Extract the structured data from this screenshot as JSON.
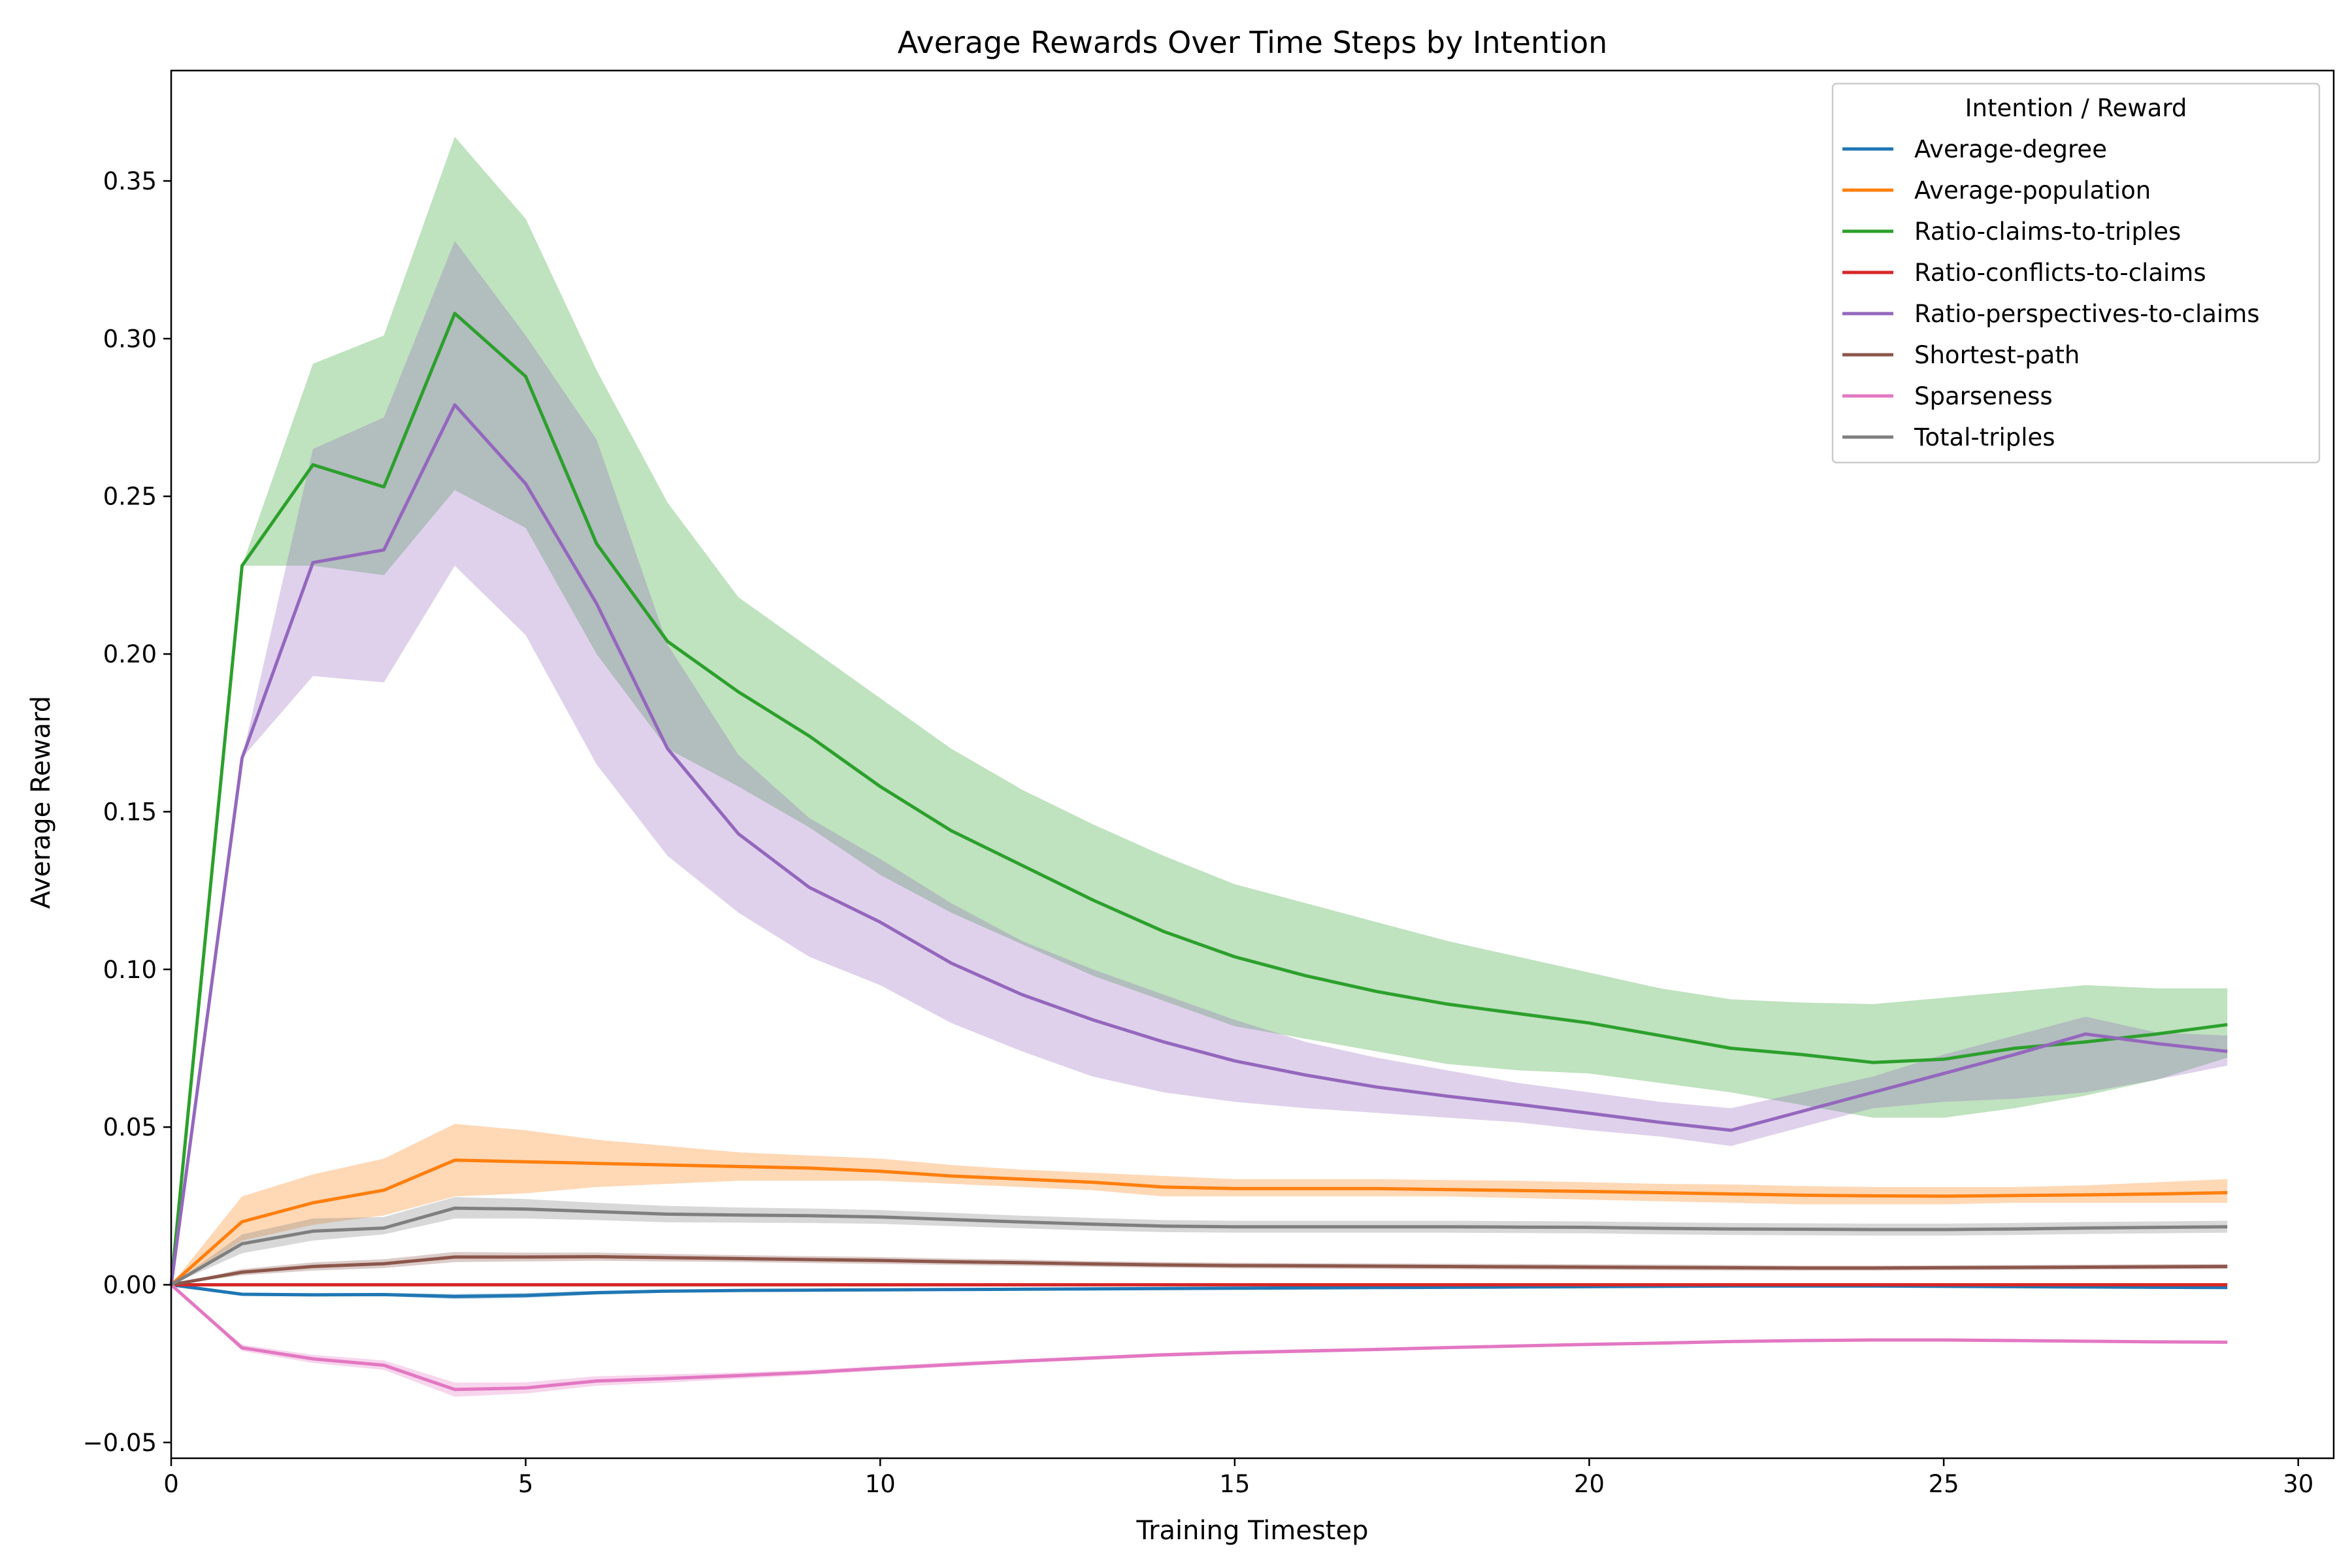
{
  "chart_data": {
    "type": "line",
    "title": "Average Rewards Over Time Steps by Intention",
    "xlabel": "Training Timestep",
    "ylabel": "Average Reward",
    "xlim": [
      0,
      30.5
    ],
    "ylim": [
      -0.055,
      0.385
    ],
    "xticks": [
      0,
      5,
      10,
      15,
      20,
      25,
      30
    ],
    "yticks": [
      -0.05,
      0.0,
      0.05,
      0.1,
      0.15,
      0.2,
      0.25,
      0.3,
      0.35
    ],
    "ytick_labels": [
      "−0.05",
      "0.00",
      "0.05",
      "0.10",
      "0.15",
      "0.20",
      "0.25",
      "0.30",
      "0.35"
    ],
    "grid": false,
    "legend": {
      "title": "Intention / Reward",
      "placement": "top-right"
    },
    "x": [
      0,
      1,
      2,
      3,
      4,
      5,
      6,
      7,
      8,
      9,
      10,
      11,
      12,
      13,
      14,
      15,
      16,
      17,
      18,
      19,
      20,
      21,
      22,
      23,
      24,
      25,
      26,
      27,
      28,
      29
    ],
    "series": [
      {
        "name": "Average-degree",
        "color": "#1f77b4",
        "values": [
          0,
          -0.003,
          -0.0032,
          -0.0031,
          -0.0037,
          -0.0034,
          -0.0025,
          -0.002,
          -0.0018,
          -0.0017,
          -0.0016,
          -0.0015,
          -0.0014,
          -0.0013,
          -0.0012,
          -0.0011,
          -0.001,
          -0.0009,
          -0.0008,
          -0.0007,
          -0.0006,
          -0.0005,
          -0.0004,
          -0.0004,
          -0.0004,
          -0.0005,
          -0.0006,
          -0.0007,
          -0.0008,
          -0.0009
        ],
        "lower": [
          0,
          -0.0035,
          -0.0037,
          -0.0036,
          -0.0045,
          -0.0042,
          -0.0031,
          -0.0025,
          -0.0022,
          -0.0021,
          -0.002,
          -0.0019,
          -0.0018,
          -0.0017,
          -0.0016,
          -0.0015,
          -0.0014,
          -0.0013,
          -0.0012,
          -0.0011,
          -0.001,
          -0.0009,
          -0.0008,
          -0.0008,
          -0.0008,
          -0.0009,
          -0.001,
          -0.0011,
          -0.0012,
          -0.0013
        ],
        "upper": [
          0,
          -0.0025,
          -0.0027,
          -0.0026,
          -0.0029,
          -0.0026,
          -0.0019,
          -0.0015,
          -0.0014,
          -0.0013,
          -0.0012,
          -0.0011,
          -0.001,
          -0.0009,
          -0.0008,
          -0.0007,
          -0.0006,
          -0.0005,
          -0.0004,
          -0.0003,
          -0.0002,
          -0.0001,
          0,
          0,
          0,
          -0.0001,
          -0.0002,
          -0.0003,
          -0.0004,
          -0.0005
        ]
      },
      {
        "name": "Average-population",
        "color": "#ff7f0e",
        "values": [
          0,
          0.02,
          0.026,
          0.03,
          0.0395,
          0.039,
          0.0385,
          0.038,
          0.0375,
          0.037,
          0.036,
          0.0345,
          0.0335,
          0.0325,
          0.031,
          0.0305,
          0.0305,
          0.0305,
          0.0302,
          0.0299,
          0.0296,
          0.0292,
          0.0288,
          0.0284,
          0.0282,
          0.0281,
          0.0283,
          0.0285,
          0.0288,
          0.0292
        ],
        "lower": [
          0,
          0.014,
          0.019,
          0.022,
          0.028,
          0.029,
          0.031,
          0.032,
          0.033,
          0.033,
          0.033,
          0.032,
          0.031,
          0.03,
          0.028,
          0.028,
          0.028,
          0.028,
          0.028,
          0.0275,
          0.027,
          0.0265,
          0.026,
          0.0255,
          0.0255,
          0.0255,
          0.026,
          0.026,
          0.026,
          0.026
        ],
        "upper": [
          0,
          0.028,
          0.035,
          0.04,
          0.051,
          0.049,
          0.046,
          0.044,
          0.042,
          0.041,
          0.04,
          0.038,
          0.0365,
          0.0355,
          0.0345,
          0.0335,
          0.0335,
          0.0335,
          0.0332,
          0.033,
          0.0325,
          0.032,
          0.0318,
          0.0313,
          0.031,
          0.031,
          0.031,
          0.0315,
          0.0325,
          0.0335
        ]
      },
      {
        "name": "Ratio-claims-to-triples",
        "color": "#2ca02c",
        "values": [
          0,
          0.228,
          0.26,
          0.253,
          0.308,
          0.288,
          0.235,
          0.204,
          0.188,
          0.174,
          0.158,
          0.144,
          0.133,
          0.122,
          0.112,
          0.104,
          0.098,
          0.093,
          0.089,
          0.086,
          0.083,
          0.079,
          0.075,
          0.073,
          0.0705,
          0.0715,
          0.075,
          0.077,
          0.0795,
          0.0825
        ],
        "lower": [
          0,
          0.228,
          0.228,
          0.225,
          0.252,
          0.24,
          0.2,
          0.17,
          0.158,
          0.145,
          0.13,
          0.118,
          0.108,
          0.098,
          0.09,
          0.082,
          0.078,
          0.074,
          0.07,
          0.068,
          0.067,
          0.064,
          0.061,
          0.057,
          0.053,
          0.053,
          0.056,
          0.06,
          0.065,
          0.072
        ],
        "upper": [
          0,
          0.228,
          0.292,
          0.301,
          0.364,
          0.338,
          0.29,
          0.248,
          0.218,
          0.202,
          0.186,
          0.17,
          0.157,
          0.146,
          0.136,
          0.127,
          0.121,
          0.115,
          0.109,
          0.104,
          0.099,
          0.094,
          0.0905,
          0.0895,
          0.089,
          0.091,
          0.093,
          0.095,
          0.094,
          0.094
        ]
      },
      {
        "name": "Ratio-conflicts-to-claims",
        "color": "#d62728",
        "values": [
          0,
          0,
          0,
          0,
          0,
          0,
          0,
          0,
          0,
          0,
          0,
          0,
          0,
          0,
          0,
          0,
          0,
          0,
          0,
          0,
          0,
          0,
          0,
          0,
          0,
          0,
          0,
          0,
          0,
          0
        ],
        "lower": [
          0,
          -0.0002,
          -0.0002,
          -0.0002,
          -0.0002,
          -0.0002,
          -0.0002,
          -0.0002,
          -0.0002,
          -0.0002,
          -0.0002,
          -0.0002,
          -0.0002,
          -0.0002,
          -0.0002,
          -0.0002,
          -0.0002,
          -0.0002,
          -0.0002,
          -0.0002,
          -0.0002,
          -0.0002,
          -0.0002,
          -0.0002,
          -0.0002,
          -0.0002,
          -0.0002,
          -0.0002,
          -0.0002,
          -0.0002
        ],
        "upper": [
          0,
          0.0002,
          0.0002,
          0.0002,
          0.0002,
          0.0002,
          0.0002,
          0.0002,
          0.0002,
          0.0002,
          0.0002,
          0.0002,
          0.0002,
          0.0002,
          0.0002,
          0.0002,
          0.0002,
          0.0002,
          0.0002,
          0.0002,
          0.0002,
          0.0002,
          0.0002,
          0.0002,
          0.0002,
          0.0002,
          0.0002,
          0.0002,
          0.0002,
          0.0002
        ]
      },
      {
        "name": "Ratio-perspectives-to-claims",
        "color": "#9467bd",
        "values": [
          0,
          0.167,
          0.229,
          0.233,
          0.279,
          0.254,
          0.216,
          0.17,
          0.143,
          0.126,
          0.115,
          0.102,
          0.092,
          0.084,
          0.077,
          0.071,
          0.0665,
          0.0627,
          0.0598,
          0.0572,
          0.0544,
          0.0515,
          0.049,
          0.055,
          0.061,
          0.067,
          0.073,
          0.0795,
          0.0765,
          0.074
        ],
        "lower": [
          0,
          0.167,
          0.193,
          0.191,
          0.228,
          0.206,
          0.165,
          0.136,
          0.118,
          0.104,
          0.095,
          0.083,
          0.074,
          0.066,
          0.061,
          0.058,
          0.056,
          0.0545,
          0.053,
          0.0515,
          0.049,
          0.047,
          0.044,
          0.05,
          0.056,
          0.058,
          0.059,
          0.061,
          0.065,
          0.0695
        ],
        "upper": [
          0,
          0.167,
          0.265,
          0.275,
          0.331,
          0.301,
          0.268,
          0.203,
          0.168,
          0.148,
          0.135,
          0.121,
          0.109,
          0.1,
          0.092,
          0.084,
          0.077,
          0.072,
          0.068,
          0.064,
          0.061,
          0.058,
          0.056,
          0.061,
          0.066,
          0.073,
          0.079,
          0.085,
          0.08,
          0.079
        ]
      },
      {
        "name": "Shortest-path",
        "color": "#8c564b",
        "values": [
          0,
          0.004,
          0.0058,
          0.0067,
          0.0088,
          0.0088,
          0.0089,
          0.0086,
          0.0083,
          0.008,
          0.0077,
          0.0073,
          0.007,
          0.0066,
          0.0063,
          0.0061,
          0.006,
          0.0059,
          0.0058,
          0.0057,
          0.0056,
          0.0055,
          0.0054,
          0.0053,
          0.0053,
          0.0054,
          0.0055,
          0.0056,
          0.0057,
          0.0058
        ],
        "lower": [
          0,
          0.003,
          0.0045,
          0.0053,
          0.0072,
          0.0074,
          0.0076,
          0.0074,
          0.0072,
          0.0069,
          0.0066,
          0.0063,
          0.006,
          0.0057,
          0.0054,
          0.0052,
          0.0051,
          0.005,
          0.0049,
          0.0048,
          0.0047,
          0.0046,
          0.0045,
          0.0045,
          0.0045,
          0.0046,
          0.0047,
          0.0048,
          0.0049,
          0.005
        ],
        "upper": [
          0,
          0.005,
          0.0071,
          0.0081,
          0.0104,
          0.0102,
          0.0102,
          0.0098,
          0.0094,
          0.0091,
          0.0088,
          0.0083,
          0.008,
          0.0075,
          0.0072,
          0.007,
          0.0069,
          0.0068,
          0.0067,
          0.0066,
          0.0065,
          0.0064,
          0.0063,
          0.0061,
          0.0061,
          0.0062,
          0.0063,
          0.0064,
          0.0065,
          0.0066
        ]
      },
      {
        "name": "Sparseness",
        "color": "#e377c2",
        "values": [
          0,
          -0.02,
          -0.0235,
          -0.0255,
          -0.0332,
          -0.0327,
          -0.0305,
          -0.0297,
          -0.0288,
          -0.0278,
          -0.0265,
          -0.0253,
          -0.0242,
          -0.0232,
          -0.0222,
          -0.0215,
          -0.021,
          -0.0205,
          -0.0199,
          -0.0194,
          -0.0189,
          -0.0185,
          -0.018,
          -0.0177,
          -0.0175,
          -0.0175,
          -0.0177,
          -0.0179,
          -0.0181,
          -0.0182
        ],
        "lower": [
          0,
          -0.021,
          -0.0248,
          -0.027,
          -0.0355,
          -0.0345,
          -0.032,
          -0.031,
          -0.0298,
          -0.0286,
          -0.0272,
          -0.026,
          -0.0248,
          -0.0238,
          -0.0228,
          -0.0221,
          -0.0216,
          -0.021,
          -0.0204,
          -0.0199,
          -0.0194,
          -0.019,
          -0.0185,
          -0.0182,
          -0.018,
          -0.018,
          -0.0182,
          -0.0184,
          -0.0186,
          -0.0187
        ],
        "upper": [
          0,
          -0.019,
          -0.0222,
          -0.024,
          -0.031,
          -0.0309,
          -0.029,
          -0.0284,
          -0.0278,
          -0.027,
          -0.0258,
          -0.0246,
          -0.0236,
          -0.0226,
          -0.0216,
          -0.0209,
          -0.0204,
          -0.02,
          -0.0194,
          -0.0189,
          -0.0184,
          -0.018,
          -0.0175,
          -0.0172,
          -0.017,
          -0.017,
          -0.0172,
          -0.0174,
          -0.0176,
          -0.0177
        ]
      },
      {
        "name": "Total-triples",
        "color": "#7f7f7f",
        "values": [
          0,
          0.013,
          0.017,
          0.018,
          0.0243,
          0.024,
          0.0232,
          0.0224,
          0.0221,
          0.0219,
          0.0215,
          0.0207,
          0.0199,
          0.0192,
          0.0186,
          0.0184,
          0.0184,
          0.0184,
          0.0184,
          0.0183,
          0.0182,
          0.0179,
          0.0177,
          0.0176,
          0.0175,
          0.0175,
          0.0177,
          0.018,
          0.0182,
          0.0184
        ],
        "lower": [
          0,
          0.01,
          0.014,
          0.016,
          0.021,
          0.021,
          0.0205,
          0.0198,
          0.0197,
          0.0196,
          0.0193,
          0.0186,
          0.0179,
          0.0172,
          0.0167,
          0.0165,
          0.0165,
          0.0165,
          0.0165,
          0.0164,
          0.0163,
          0.016,
          0.0158,
          0.0157,
          0.0156,
          0.0156,
          0.0158,
          0.0161,
          0.0163,
          0.0165
        ],
        "upper": [
          0,
          0.016,
          0.021,
          0.0215,
          0.0278,
          0.0272,
          0.026,
          0.025,
          0.0245,
          0.0242,
          0.0237,
          0.0228,
          0.0219,
          0.0212,
          0.0205,
          0.0203,
          0.0203,
          0.0203,
          0.0203,
          0.0202,
          0.0201,
          0.0198,
          0.0196,
          0.0195,
          0.0194,
          0.0194,
          0.0196,
          0.0199,
          0.0201,
          0.0203
        ]
      }
    ]
  }
}
